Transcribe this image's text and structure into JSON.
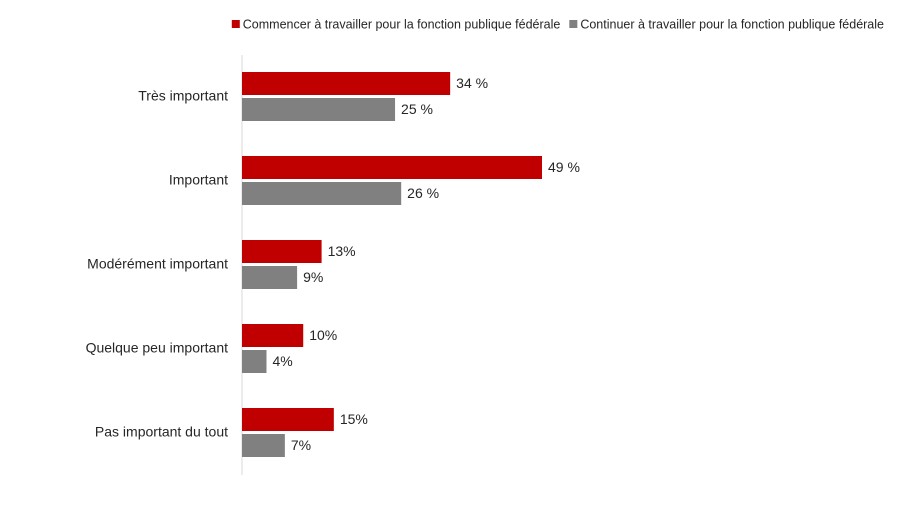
{
  "chart_data": {
    "type": "barh",
    "categories": [
      "Très important",
      "Important",
      "Modérément important",
      "Quelque peu important",
      "Pas important du tout"
    ],
    "series": [
      {
        "name": "Commencer à travailler pour la fonction publique fédérale",
        "color": "#c00000",
        "values": [
          34,
          49,
          13,
          10,
          15
        ],
        "value_labels": [
          "34 %",
          "49 %",
          "13%",
          "10%",
          "15%"
        ]
      },
      {
        "name": "Continuer à travailler pour la fonction publique fédérale",
        "color": "#808080",
        "values": [
          25,
          26,
          9,
          4,
          7
        ],
        "value_labels": [
          "25 %",
          "26 %",
          "9%",
          "4%",
          "7%"
        ]
      }
    ],
    "legend": "top-right"
  }
}
